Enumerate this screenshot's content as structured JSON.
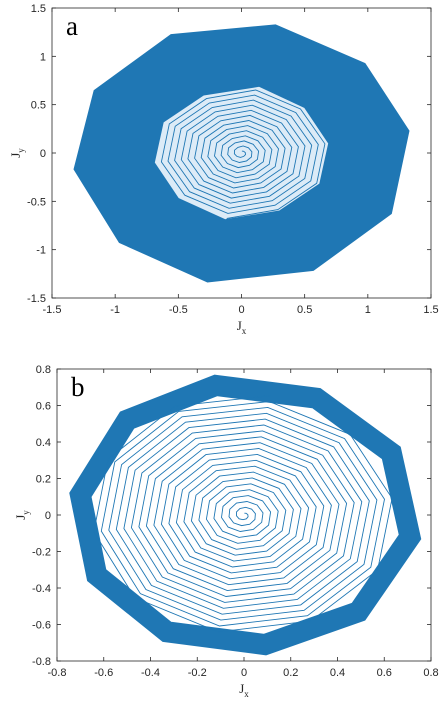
{
  "chart_data": [
    {
      "type": "line",
      "panel_label": "a",
      "xlabel": "J",
      "xlabel_sub": "x",
      "ylabel": "J",
      "ylabel_sub": "y",
      "xlim": [
        -1.5,
        1.5
      ],
      "ylim": [
        -1.5,
        1.5
      ],
      "xticks": [
        -1.5,
        -1,
        -0.5,
        0,
        0.5,
        1,
        1.5
      ],
      "yticks": [
        -1.5,
        -1,
        -0.5,
        0,
        0.5,
        1,
        1.5
      ],
      "xtick_labels": [
        "-1.5",
        "-1",
        "-0.5",
        "0",
        "0.5",
        "1",
        "1.5"
      ],
      "ytick_labels": [
        "-1.5",
        "-1",
        "-0.5",
        "0",
        "0.5",
        "1",
        "1.5"
      ],
      "grid": false,
      "series": [
        {
          "color": "#1f77b4",
          "outer_boundary": [
            {
              "x": 0.27,
              "y": 1.33
            },
            {
              "x": 0.98,
              "y": 0.93
            },
            {
              "x": 1.33,
              "y": 0.23
            },
            {
              "x": 1.19,
              "y": -0.63
            },
            {
              "x": 0.57,
              "y": -1.22
            },
            {
              "x": -0.27,
              "y": -1.34
            },
            {
              "x": -0.97,
              "y": -0.93
            },
            {
              "x": -1.33,
              "y": -0.17
            },
            {
              "x": -1.17,
              "y": 0.65
            },
            {
              "x": -0.56,
              "y": 1.23
            }
          ],
          "hole_boundary": [
            {
              "x": 0.14,
              "y": 0.69
            },
            {
              "x": 0.5,
              "y": 0.47
            },
            {
              "x": 0.69,
              "y": 0.1
            },
            {
              "x": 0.62,
              "y": -0.32
            },
            {
              "x": 0.3,
              "y": -0.6
            },
            {
              "x": -0.13,
              "y": -0.69
            },
            {
              "x": -0.5,
              "y": -0.47
            },
            {
              "x": -0.69,
              "y": -0.1
            },
            {
              "x": -0.62,
              "y": 0.32
            },
            {
              "x": -0.3,
              "y": 0.6
            }
          ],
          "spiral_start_radius": 0.02,
          "spiral_end_radius": 0.69,
          "spiral_turns": 12.5,
          "spiral_vertices_per_turn": 10
        }
      ]
    },
    {
      "type": "line",
      "panel_label": "b",
      "xlabel": "J",
      "xlabel_sub": "x",
      "ylabel": "J",
      "ylabel_sub": "y",
      "xlim": [
        -0.8,
        0.8
      ],
      "ylim": [
        -0.8,
        0.8
      ],
      "xticks": [
        -0.8,
        -0.6,
        -0.4,
        -0.2,
        0,
        0.2,
        0.4,
        0.6,
        0.8
      ],
      "yticks": [
        -0.8,
        -0.6,
        -0.4,
        -0.2,
        0,
        0.2,
        0.4,
        0.6,
        0.8
      ],
      "xtick_labels": [
        "-0.8",
        "-0.6",
        "-0.4",
        "-0.2",
        "0",
        "0.2",
        "0.4",
        "0.6",
        "0.8"
      ],
      "ytick_labels": [
        "-0.8",
        "-0.6",
        "-0.4",
        "-0.2",
        "0",
        "0.2",
        "0.4",
        "0.6",
        "0.8"
      ],
      "grid": false,
      "series": [
        {
          "color": "#1f77b4",
          "outer_boundary": [
            {
              "x": -0.12,
              "y": 0.71
            },
            {
              "x": 0.31,
              "y": 0.64
            },
            {
              "x": 0.63,
              "y": 0.34
            },
            {
              "x": 0.71,
              "y": -0.12
            },
            {
              "x": 0.49,
              "y": -0.53
            },
            {
              "x": 0.09,
              "y": -0.71
            },
            {
              "x": -0.33,
              "y": -0.64
            },
            {
              "x": -0.63,
              "y": -0.33
            },
            {
              "x": -0.7,
              "y": 0.11
            },
            {
              "x": -0.5,
              "y": 0.52
            }
          ],
          "band_width": 0.045,
          "spiral_start_radius": 0.01,
          "spiral_end_radius": 0.67,
          "spiral_turns": 20,
          "spiral_vertices_per_turn": 10
        }
      ]
    }
  ]
}
